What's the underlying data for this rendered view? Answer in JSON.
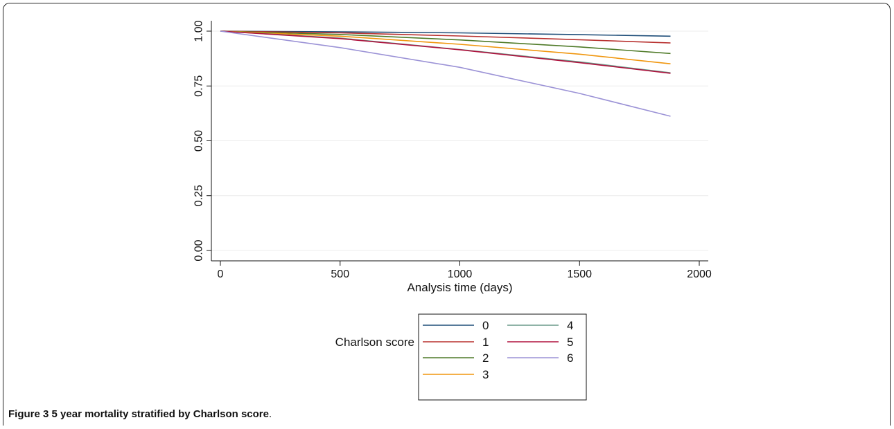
{
  "caption": {
    "label": "Figure 3",
    "text": "5 year mortality stratified by Charlson score",
    "period": "."
  },
  "chart_data": {
    "type": "line",
    "title": "",
    "xlabel": "Analysis time (days)",
    "ylabel": "",
    "xlim": [
      0,
      2000
    ],
    "ylim": [
      0,
      1
    ],
    "x_ticks": [
      "0",
      "500",
      "1000",
      "1500",
      "2000"
    ],
    "y_ticks": [
      "0.00",
      "0.25",
      "0.50",
      "0.75",
      "1.00"
    ],
    "grid": true,
    "legend": {
      "title": "Charlson score",
      "placement": "bottom"
    },
    "series": [
      {
        "name": "0",
        "color": "#1f4e79",
        "x": [
          0,
          500,
          1000,
          1500,
          1880
        ],
        "y": [
          1.0,
          0.997,
          0.992,
          0.984,
          0.977
        ]
      },
      {
        "name": "1",
        "color": "#b8312f",
        "x": [
          0,
          500,
          1000,
          1500,
          1880
        ],
        "y": [
          1.0,
          0.992,
          0.978,
          0.961,
          0.946
        ]
      },
      {
        "name": "2",
        "color": "#4f7a28",
        "x": [
          0,
          500,
          1000,
          1500,
          1880
        ],
        "y": [
          1.0,
          0.985,
          0.96,
          0.928,
          0.898
        ]
      },
      {
        "name": "3",
        "color": "#f0960e",
        "x": [
          0,
          500,
          1000,
          1500,
          1880
        ],
        "y": [
          1.0,
          0.977,
          0.94,
          0.895,
          0.851
        ]
      },
      {
        "name": "4",
        "color": "#6a9a8a",
        "x": [
          0,
          500,
          1000,
          1500,
          1880
        ],
        "y": [
          1.0,
          0.968,
          0.916,
          0.86,
          0.81
        ]
      },
      {
        "name": "5",
        "color": "#b0123e",
        "x": [
          0,
          500,
          1000,
          1500,
          1880
        ],
        "y": [
          1.0,
          0.966,
          0.915,
          0.856,
          0.808
        ]
      },
      {
        "name": "6",
        "color": "#9b92d6",
        "x": [
          0,
          500,
          1000,
          1500,
          1880
        ],
        "y": [
          1.0,
          0.925,
          0.835,
          0.716,
          0.612
        ]
      }
    ]
  }
}
